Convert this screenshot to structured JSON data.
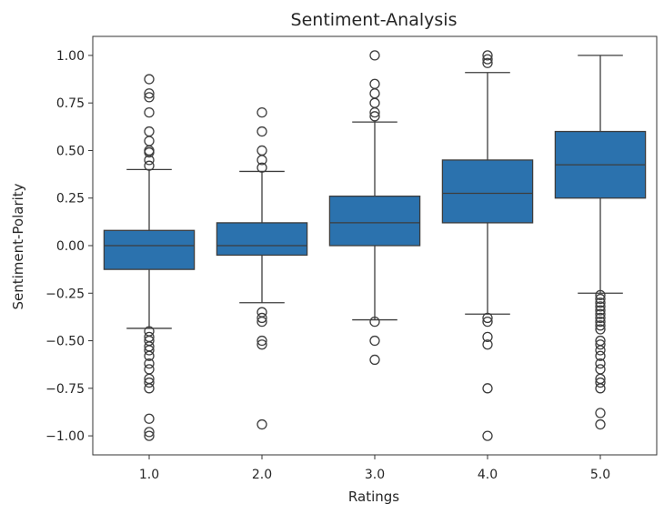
{
  "chart_data": {
    "type": "box",
    "title": "Sentiment-Analysis",
    "xlabel": "Ratings",
    "ylabel": "Sentiment-Polarity",
    "ylim": [
      -1.1,
      1.1
    ],
    "yticks": [
      1.0,
      0.75,
      0.5,
      0.25,
      0.0,
      -0.25,
      -0.5,
      -0.75,
      -1.0
    ],
    "ytick_labels": [
      "1.00",
      "0.75",
      "0.50",
      "0.25",
      "0.00",
      "−0.25",
      "−0.50",
      "−0.75",
      "−1.00"
    ],
    "categories": [
      "1.0",
      "2.0",
      "3.0",
      "4.0",
      "5.0"
    ],
    "box_color": "#2b72ae",
    "line_color": "#3d3d3d",
    "boxes": [
      {
        "category": "1.0",
        "whisker_low": -0.435,
        "q1": -0.125,
        "median": 0.0,
        "q3": 0.08,
        "whisker_high": 0.4,
        "fliers": [
          0.875,
          0.8,
          0.78,
          0.7,
          0.6,
          0.55,
          0.5,
          0.49,
          0.45,
          0.42,
          -0.45,
          -0.48,
          -0.5,
          -0.53,
          -0.55,
          -0.58,
          -0.62,
          -0.65,
          -0.7,
          -0.72,
          -0.75,
          -0.91,
          -0.98,
          -1.0
        ]
      },
      {
        "category": "2.0",
        "whisker_low": -0.3,
        "q1": -0.05,
        "median": 0.0,
        "q3": 0.12,
        "whisker_high": 0.39,
        "fliers": [
          0.7,
          0.6,
          0.5,
          0.45,
          0.41,
          -0.35,
          -0.38,
          -0.4,
          -0.5,
          -0.52,
          -0.94
        ]
      },
      {
        "category": "3.0",
        "whisker_low": -0.39,
        "q1": 0.0,
        "median": 0.12,
        "q3": 0.26,
        "whisker_high": 0.65,
        "fliers": [
          1.0,
          0.85,
          0.8,
          0.75,
          0.7,
          0.68,
          -0.4,
          -0.5,
          -0.6
        ]
      },
      {
        "category": "4.0",
        "whisker_low": -0.36,
        "q1": 0.12,
        "median": 0.275,
        "q3": 0.45,
        "whisker_high": 0.91,
        "fliers": [
          1.0,
          0.98,
          0.96,
          -0.38,
          -0.4,
          -0.48,
          -0.52,
          -0.75,
          -1.0
        ]
      },
      {
        "category": "5.0",
        "whisker_low": -0.25,
        "q1": 0.25,
        "median": 0.425,
        "q3": 0.6,
        "whisker_high": 1.0,
        "fliers": [
          -0.26,
          -0.28,
          -0.3,
          -0.32,
          -0.34,
          -0.36,
          -0.38,
          -0.4,
          -0.42,
          -0.44,
          -0.5,
          -0.52,
          -0.55,
          -0.58,
          -0.62,
          -0.65,
          -0.7,
          -0.72,
          -0.75,
          -0.88,
          -0.94
        ]
      }
    ]
  }
}
